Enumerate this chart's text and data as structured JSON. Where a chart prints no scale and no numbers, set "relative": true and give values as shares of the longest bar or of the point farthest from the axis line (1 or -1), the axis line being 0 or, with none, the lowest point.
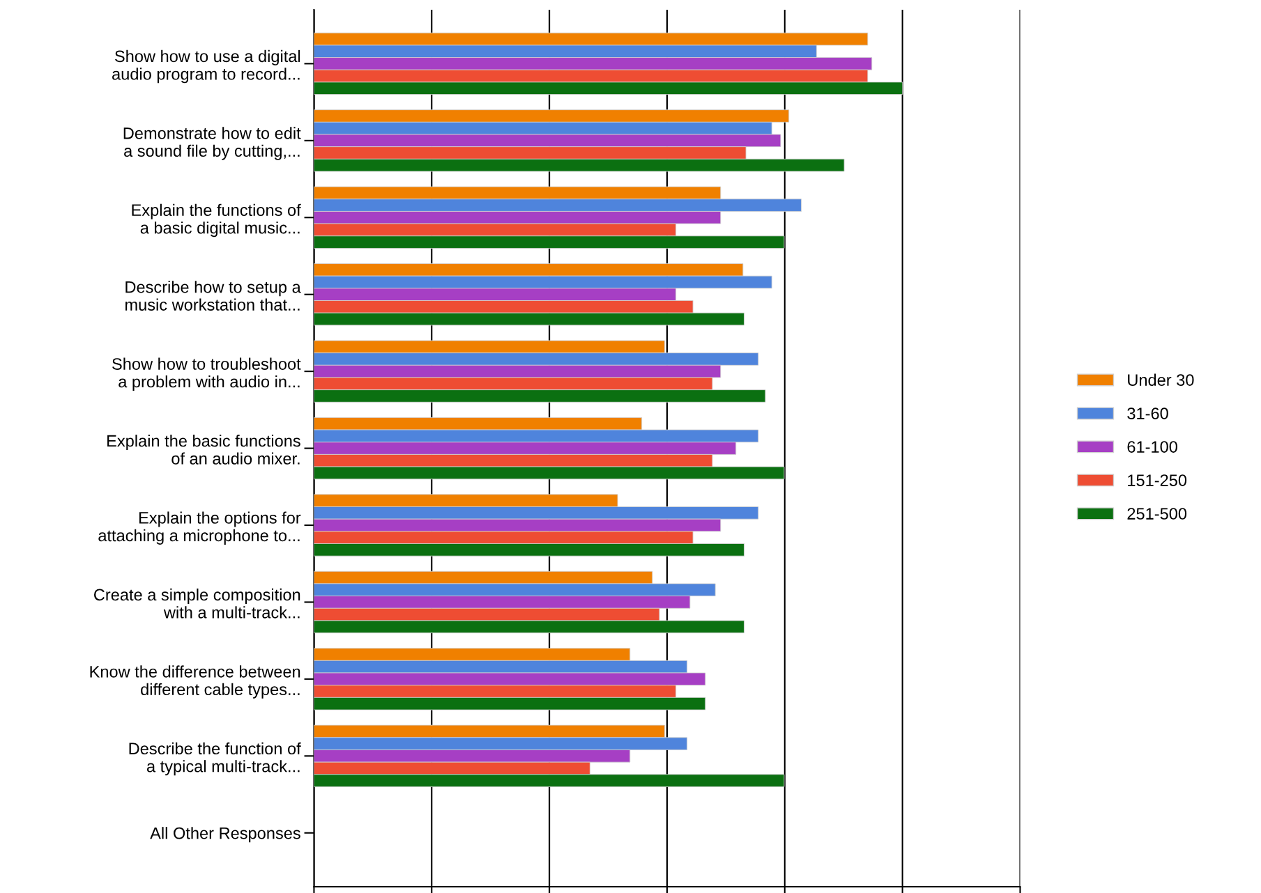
{
  "chart_data": {
    "type": "bar",
    "orientation": "horizontal",
    "relative": true,
    "grid": "x",
    "legend": "right",
    "categories": [
      "Show how to use a digital\naudio program to record...",
      "Demonstrate how to edit\na sound file by cutting,...",
      "Explain the functions of\na basic digital music...",
      "Describe how to setup a\nmusic workstation that...",
      "Show how to troubleshoot\na problem with audio in...",
      "Explain the basic functions\nof an audio mixer.",
      "Explain the options for\nattaching a microphone to...",
      "Create a simple composition\nwith a multi-track...",
      "Know the difference between\ndifferent cable types...",
      "Describe the function of\na typical multi-track...",
      "All Other Responses"
    ],
    "series": [
      {
        "name": "Under 30",
        "color": "#f08000",
        "values": [
          0.941,
          0.807,
          0.691,
          0.729,
          0.596,
          0.557,
          0.516,
          0.575,
          0.537,
          0.596,
          null
        ]
      },
      {
        "name": "31-60",
        "color": "#4f84dc",
        "values": [
          0.854,
          0.778,
          0.828,
          0.778,
          0.755,
          0.755,
          0.755,
          0.682,
          0.634,
          0.634,
          null
        ]
      },
      {
        "name": "61-100",
        "color": "#a63fc4",
        "values": [
          0.948,
          0.793,
          0.691,
          0.615,
          0.691,
          0.717,
          0.691,
          0.639,
          0.665,
          0.537,
          null
        ]
      },
      {
        "name": "151-250",
        "color": "#ee4d33",
        "values": [
          0.941,
          0.734,
          0.615,
          0.644,
          0.677,
          0.677,
          0.644,
          0.587,
          0.615,
          0.469,
          null
        ]
      },
      {
        "name": "251-500",
        "color": "#0b7011",
        "values": [
          1,
          0.901,
          0.799,
          0.731,
          0.767,
          0.799,
          0.731,
          0.731,
          0.665,
          0.799,
          null
        ]
      }
    ]
  }
}
